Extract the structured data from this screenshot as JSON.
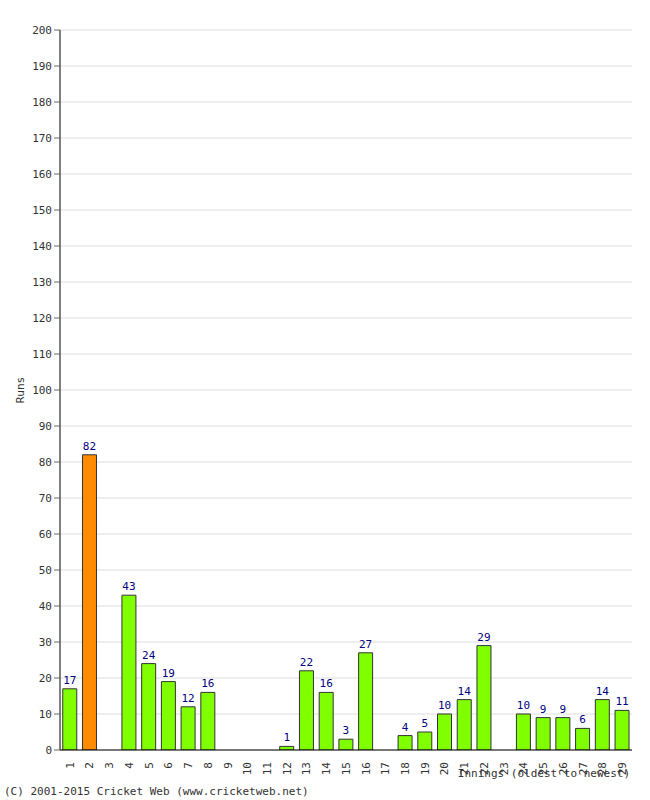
{
  "chart_data": {
    "type": "bar",
    "x_label": "Innings (oldest to newest)",
    "y_label": "Runs",
    "footer": "(C) 2001-2015 Cricket Web (www.cricketweb.net)",
    "categories": [
      "1",
      "2",
      "3",
      "4",
      "5",
      "6",
      "7",
      "8",
      "9",
      "10",
      "11",
      "12",
      "13",
      "14",
      "15",
      "16",
      "17",
      "18",
      "19",
      "20",
      "21",
      "22",
      "23",
      "24",
      "25",
      "26",
      "27",
      "28",
      "29"
    ],
    "values": [
      17,
      82,
      0,
      43,
      24,
      19,
      12,
      16,
      0,
      0,
      0,
      1,
      22,
      16,
      3,
      27,
      0,
      4,
      5,
      10,
      14,
      29,
      0,
      10,
      9,
      9,
      6,
      14,
      11
    ],
    "colors": [
      "#80ff00",
      "#ff8c00",
      "#80ff00",
      "#80ff00",
      "#80ff00",
      "#80ff00",
      "#80ff00",
      "#80ff00",
      "#80ff00",
      "#80ff00",
      "#80ff00",
      "#80ff00",
      "#80ff00",
      "#80ff00",
      "#80ff00",
      "#80ff00",
      "#80ff00",
      "#80ff00",
      "#80ff00",
      "#80ff00",
      "#80ff00",
      "#80ff00",
      "#80ff00",
      "#80ff00",
      "#80ff00",
      "#80ff00",
      "#80ff00",
      "#80ff00",
      "#80ff00"
    ],
    "ylim": [
      0,
      200
    ],
    "yticks": [
      0,
      10,
      20,
      30,
      40,
      50,
      60,
      70,
      80,
      90,
      100,
      110,
      120,
      130,
      140,
      150,
      160,
      170,
      180,
      190,
      200
    ],
    "grid": true,
    "data_labels": true
  }
}
